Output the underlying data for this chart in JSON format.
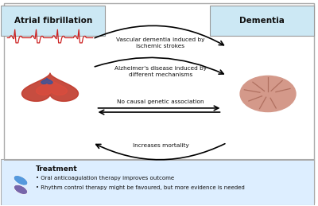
{
  "title_left": "Atrial fibrillation",
  "title_right": "Dementia",
  "treatment_title": "Treatment",
  "treatment_bullets": [
    "Oral anticoagulation therapy improves outcome",
    "Rhythm control therapy might be favoured, but more evidence is needed"
  ],
  "bg_color": "#ffffff",
  "title_box_color": "#cce8f4",
  "treatment_box_color": "#ddeeff",
  "arrow_color": "#111111",
  "text_color": "#111111",
  "ecg_color": "#cc2222",
  "brain_color": "#d4998a",
  "brain_detail_color": "#b07060"
}
